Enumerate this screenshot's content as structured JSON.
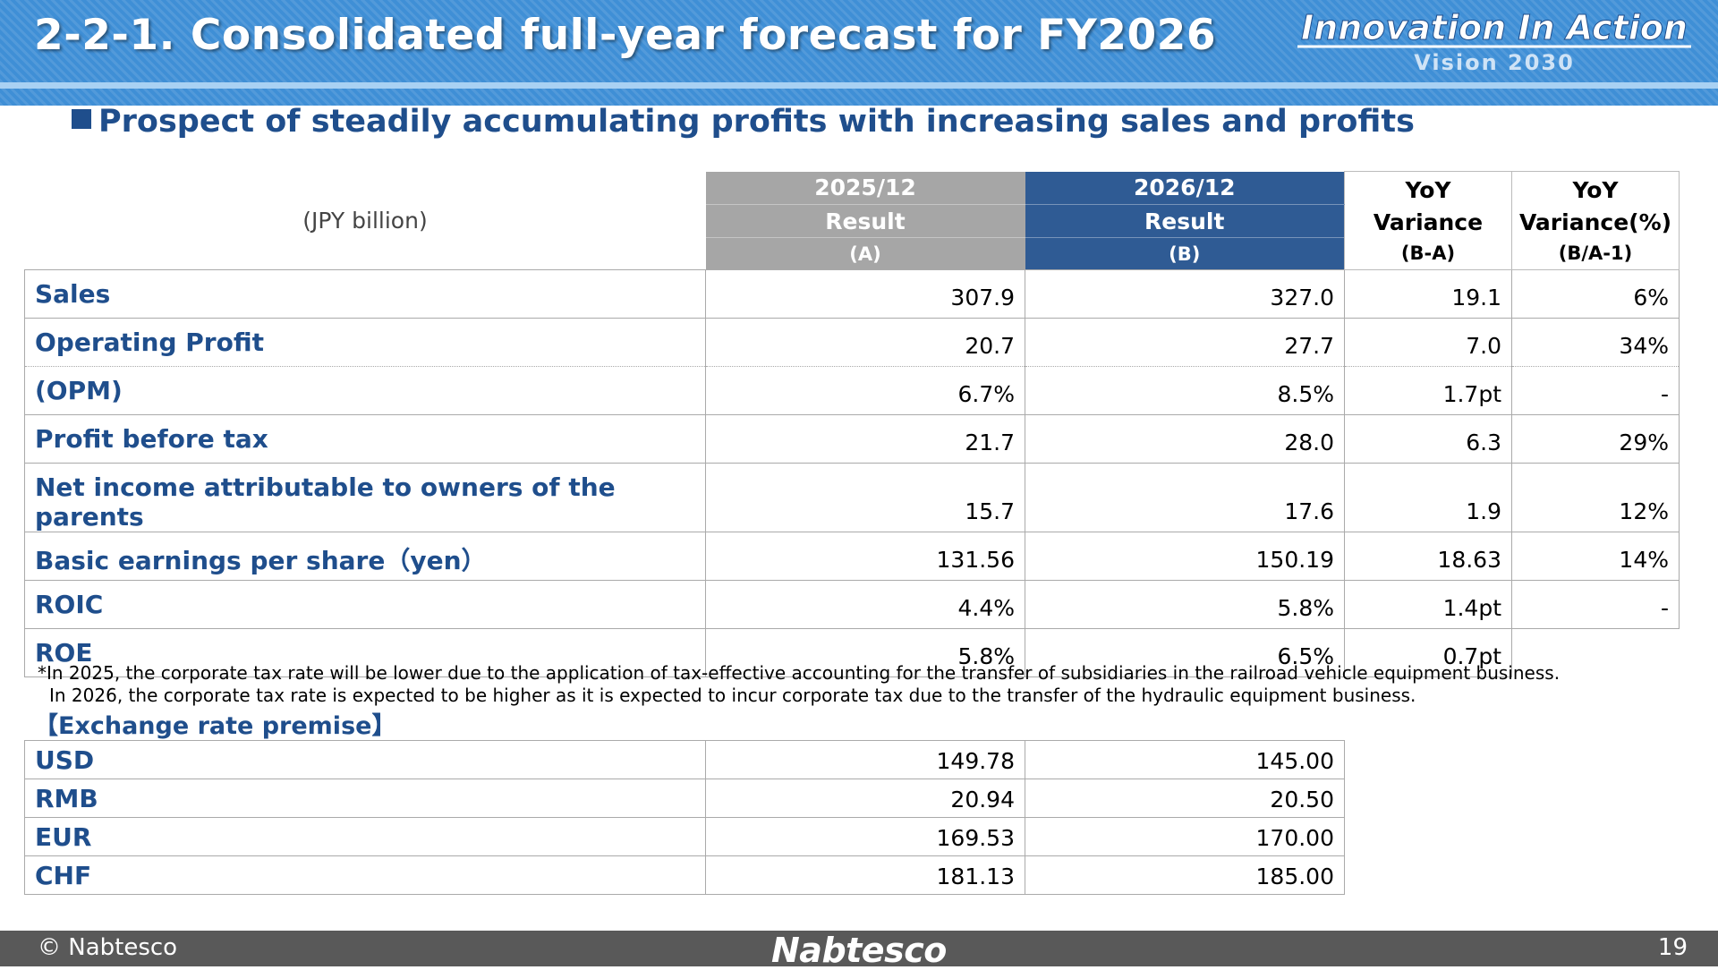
{
  "header": {
    "title": "2-2-1. Consolidated full-year forecast for FY2026",
    "brand_main": "Innovation In Action",
    "brand_sub": "Vision 2030"
  },
  "subtitle": "Prospect of steadily accumulating profits with increasing sales and profits",
  "table": {
    "unit_label": "(JPY billion)",
    "col_a": {
      "line1": "2025/12",
      "line2": "Result",
      "line3": "(A)"
    },
    "col_b": {
      "line1": "2026/12",
      "line2": "Result",
      "line3": "(B)"
    },
    "col_var": {
      "line1": "YoY",
      "line2": "Variance",
      "line3": "(B-A)"
    },
    "col_pct": {
      "line1": "YoY",
      "line2": "Variance(%)",
      "line3": "(B/A-1)"
    },
    "rows": [
      {
        "label": "Sales",
        "a": "307.9",
        "b": "327.0",
        "var": "19.1",
        "pct": "6%"
      },
      {
        "label": "Operating Profit",
        "a": "20.7",
        "b": "27.7",
        "var": "7.0",
        "pct": "34%"
      },
      {
        "label": "(OPM)",
        "a": "6.7%",
        "b": "8.5%",
        "var": "1.7pt",
        "pct": "-"
      },
      {
        "label": "Profit before tax",
        "a": "21.7",
        "b": "28.0",
        "var": "6.3",
        "pct": "29%"
      },
      {
        "label": "Net income attributable to owners of the parents",
        "a": "15.7",
        "b": "17.6",
        "var": "1.9",
        "pct": "12%"
      },
      {
        "label": "Basic earnings per share（yen）",
        "a": "131.56",
        "b": "150.19",
        "var": "18.63",
        "pct": "14%"
      },
      {
        "label": "ROIC",
        "a": "4.4%",
        "b": "5.8%",
        "var": "1.4pt",
        "pct": "-"
      },
      {
        "label": "ROE",
        "a": "5.8%",
        "b": "6.5%",
        "var": "0.7pt",
        "pct": ""
      }
    ]
  },
  "notes": {
    "line1": "*In 2025, the corporate tax rate will be lower due to the application of tax-effective accounting for the transfer of subsidiaries in the railroad vehicle equipment business.",
    "line2": "In 2026, the corporate tax rate is expected to be higher as it is expected to incur corporate tax due to the transfer of the hydraulic equipment business."
  },
  "fx": {
    "title": "【Exchange rate premise】",
    "rows": [
      {
        "label": "USD",
        "a": "149.78",
        "b": "145.00"
      },
      {
        "label": "RMB",
        "a": "20.94",
        "b": "20.50"
      },
      {
        "label": "EUR",
        "a": "169.53",
        "b": "170.00"
      },
      {
        "label": "CHF",
        "a": "181.13",
        "b": "185.00"
      }
    ]
  },
  "footer": {
    "copyright": "© Nabtesco",
    "logo": "Nabtesco",
    "page_number": "19"
  },
  "colors": {
    "header_blue": "#3f8fd6",
    "text_blue": "#1f4e8c",
    "col_a_gray": "#a6a6a6",
    "col_b_blue": "#2f5b94",
    "footer_gray": "#595959"
  }
}
